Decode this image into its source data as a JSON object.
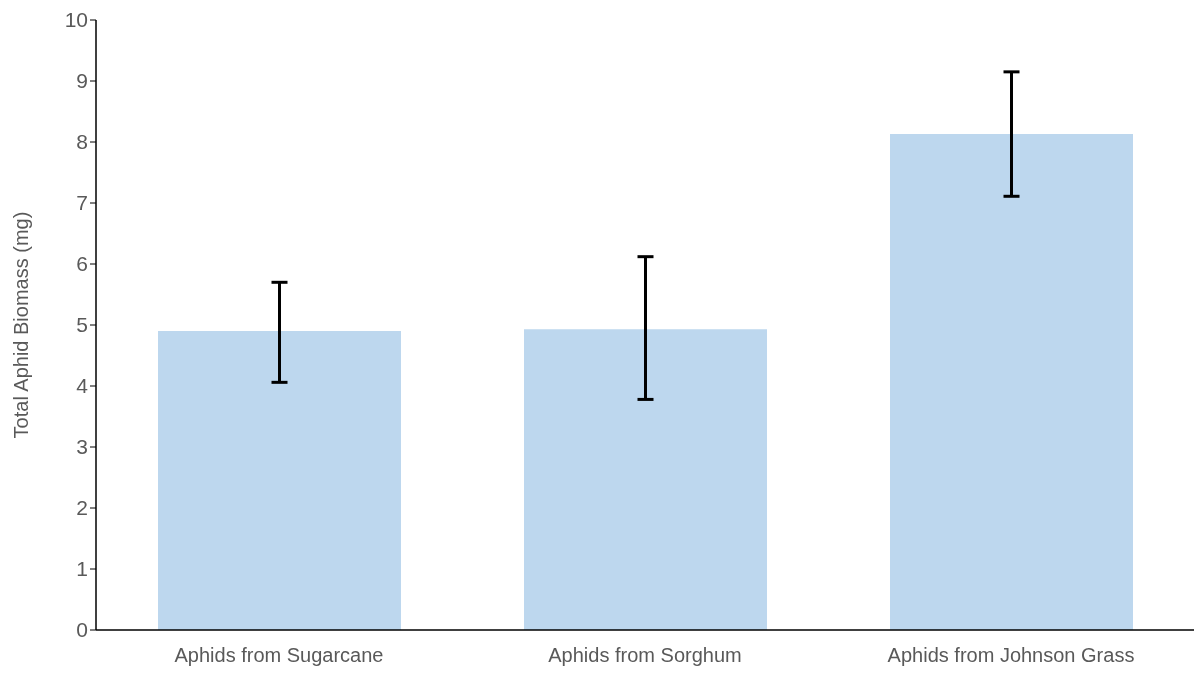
{
  "chart_data": {
    "type": "bar",
    "ylabel": "Total Aphid Biomass (mg)",
    "categories": [
      "Aphids from Sugarcane",
      "Aphids from Sorghum",
      "Aphids from Johnson Grass"
    ],
    "values": [
      4.9,
      4.93,
      8.13
    ],
    "errors": [
      [
        4.06,
        5.7
      ],
      [
        3.78,
        6.12
      ],
      [
        7.11,
        9.15
      ]
    ],
    "color": "#bdd7ee",
    "ylim": [
      0,
      10
    ],
    "yticks": [
      0,
      1,
      2,
      3,
      4,
      5,
      6,
      7,
      8,
      9,
      10
    ],
    "grid": false,
    "legend": false
  }
}
